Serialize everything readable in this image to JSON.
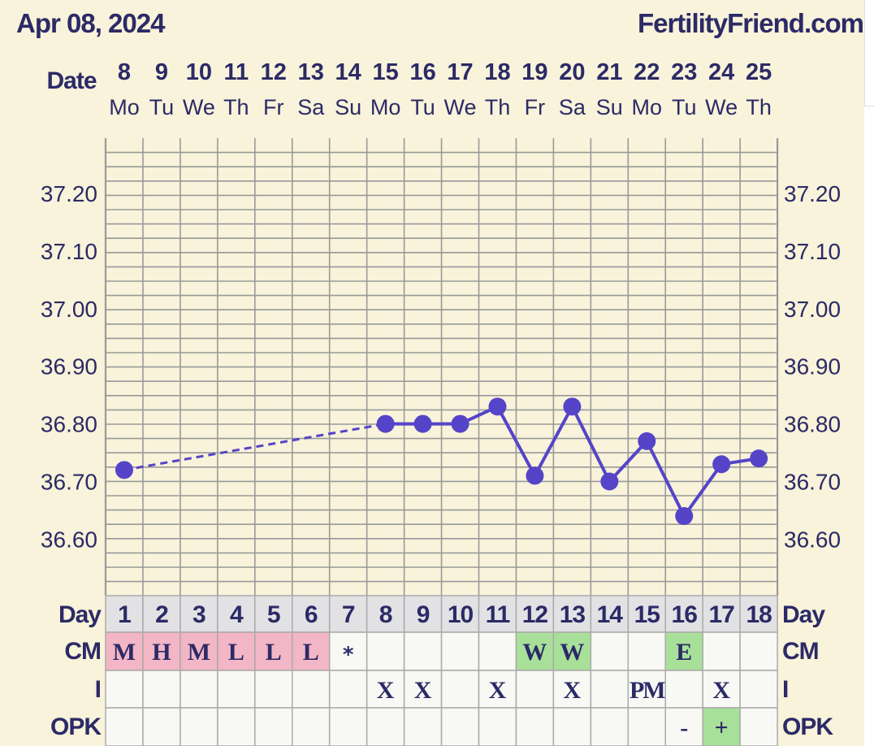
{
  "header": {
    "date": "Apr 08, 2024",
    "site": "FertilityFriend.com"
  },
  "labels": {
    "date": "Date",
    "day": "Day",
    "cm": "CM",
    "i": "I",
    "opk": "OPK"
  },
  "colors": {
    "line": "#5544c8",
    "text": "#2c2a66",
    "menstrual": "#f2b6c6",
    "fertile": "#a8e09a",
    "background": "#f8f3da",
    "grid": "#999999"
  },
  "chart_data": {
    "type": "line",
    "dates": [
      "8",
      "9",
      "10",
      "11",
      "12",
      "13",
      "14",
      "15",
      "16",
      "17",
      "18",
      "19",
      "20",
      "21",
      "22",
      "23",
      "24",
      "25"
    ],
    "weekdays": [
      "Mo",
      "Tu",
      "We",
      "Th",
      "Fr",
      "Sa",
      "Su",
      "Mo",
      "Tu",
      "We",
      "Th",
      "Fr",
      "Sa",
      "Su",
      "Mo",
      "Tu",
      "We",
      "Th"
    ],
    "cycle_days": [
      "1",
      "2",
      "3",
      "4",
      "5",
      "6",
      "7",
      "8",
      "9",
      "10",
      "11",
      "12",
      "13",
      "14",
      "15",
      "16",
      "17",
      "18"
    ],
    "temps": [
      36.72,
      null,
      null,
      null,
      null,
      null,
      null,
      36.8,
      36.8,
      36.8,
      36.83,
      36.71,
      36.83,
      36.7,
      36.77,
      36.64,
      36.73,
      36.74
    ],
    "y_ticks": [
      "37.20",
      "37.10",
      "37.00",
      "36.90",
      "36.80",
      "36.70",
      "36.60"
    ],
    "ylim": [
      36.53,
      37.29
    ],
    "cm": [
      "M",
      "H",
      "M",
      "L",
      "L",
      "L",
      "*",
      "",
      "",
      "",
      "",
      "W",
      "W",
      "",
      "",
      "E",
      "",
      ""
    ],
    "intercourse": [
      "",
      "",
      "",
      "",
      "",
      "",
      "",
      "X",
      "X",
      "",
      "X",
      "",
      "X",
      "",
      "PM",
      "",
      "X",
      ""
    ],
    "opk": [
      "",
      "",
      "",
      "",
      "",
      "",
      "",
      "",
      "",
      "",
      "",
      "",
      "",
      "",
      "",
      "-",
      "+",
      ""
    ]
  }
}
